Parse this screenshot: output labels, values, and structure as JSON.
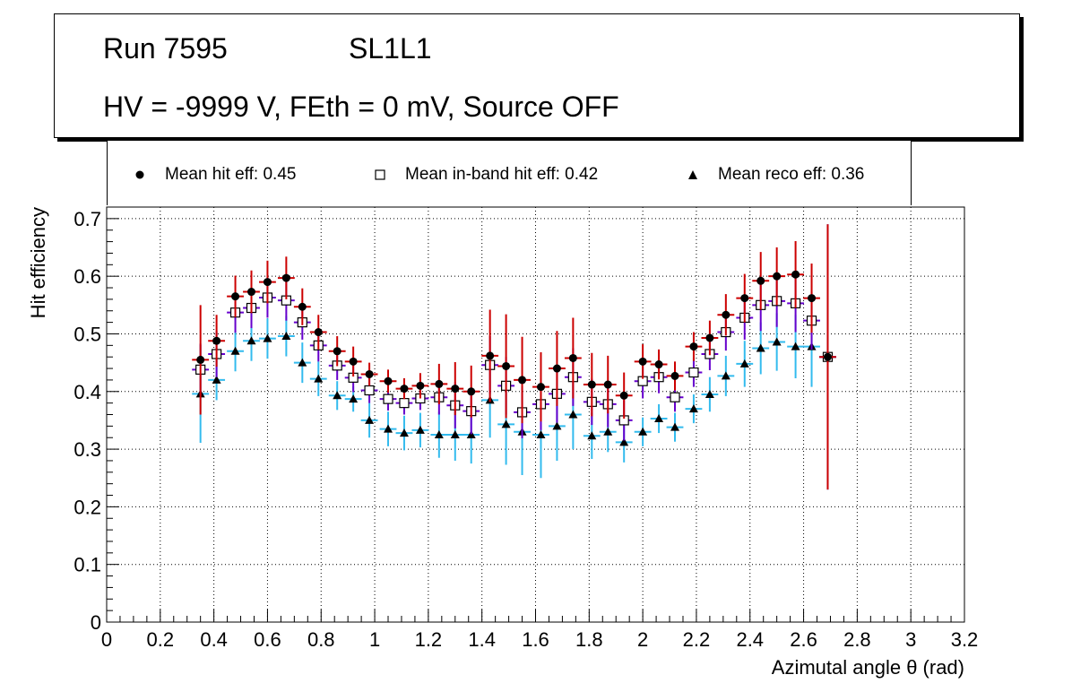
{
  "header": {
    "run": "Run 7595",
    "layer": "SL1L1",
    "conditions": "HV = -9999 V, FEth = 0 mV, Source OFF"
  },
  "legend": {
    "hit": "Mean hit  eff: 0.45",
    "inband": "Mean in-band hit eff: 0.42",
    "reco": "Mean reco eff: 0.36"
  },
  "colors": {
    "hit_err": "#cc0000",
    "inband_err": "#6600cc",
    "reco_err": "#33bbee",
    "grid": "#000000"
  },
  "chart_data": {
    "type": "scatter",
    "xlabel": "Azimutal angle θ (rad)",
    "ylabel": "Hit efficiency",
    "xlim": [
      0,
      3.2
    ],
    "ylim": [
      0,
      0.72
    ],
    "xticks": [
      "0",
      "0.2",
      "0.4",
      "0.6",
      "0.8",
      "1",
      "1.2",
      "1.4",
      "1.6",
      "1.8",
      "2",
      "2.2",
      "2.4",
      "2.6",
      "2.8",
      "3",
      "3.2"
    ],
    "yticks": [
      "0",
      "0.1",
      "0.2",
      "0.3",
      "0.4",
      "0.5",
      "0.6",
      "0.7"
    ],
    "x": [
      0.35,
      0.41,
      0.48,
      0.54,
      0.6,
      0.67,
      0.73,
      0.79,
      0.86,
      0.92,
      0.98,
      1.05,
      1.11,
      1.17,
      1.24,
      1.3,
      1.36,
      1.43,
      1.49,
      1.55,
      1.62,
      1.68,
      1.74,
      1.81,
      1.87,
      1.93,
      2.0,
      2.06,
      2.12,
      2.19,
      2.25,
      2.31,
      2.38,
      2.44,
      2.5,
      2.57,
      2.63,
      2.69
    ],
    "series": [
      {
        "name": "Mean hit eff",
        "values": [
          0.455,
          0.488,
          0.565,
          0.573,
          0.59,
          0.597,
          0.547,
          0.503,
          0.47,
          0.452,
          0.43,
          0.418,
          0.405,
          0.41,
          0.413,
          0.405,
          0.4,
          0.462,
          0.444,
          0.42,
          0.408,
          0.44,
          0.458,
          0.412,
          0.412,
          0.393,
          0.452,
          0.447,
          0.427,
          0.478,
          0.493,
          0.533,
          0.562,
          0.592,
          0.6,
          0.603,
          0.562,
          0.46
        ],
        "errors": [
          0.095,
          0.045,
          0.036,
          0.037,
          0.037,
          0.037,
          0.032,
          0.03,
          0.026,
          0.026,
          0.02,
          0.02,
          0.018,
          0.022,
          0.035,
          0.046,
          0.045,
          0.08,
          0.09,
          0.075,
          0.06,
          0.065,
          0.07,
          0.055,
          0.05,
          0.04,
          0.03,
          0.026,
          0.025,
          0.025,
          0.03,
          0.036,
          0.042,
          0.05,
          0.05,
          0.058,
          0.06,
          0.23
        ]
      },
      {
        "name": "Mean in-band hit eff",
        "values": [
          0.438,
          0.465,
          0.537,
          0.545,
          0.563,
          0.558,
          0.52,
          0.48,
          0.445,
          0.424,
          0.402,
          0.387,
          0.38,
          0.388,
          0.39,
          0.376,
          0.366,
          0.446,
          0.41,
          0.364,
          0.378,
          0.396,
          0.425,
          0.382,
          0.378,
          0.35,
          0.418,
          0.425,
          0.39,
          0.433,
          0.465,
          0.503,
          0.528,
          0.55,
          0.557,
          0.553,
          0.523,
          0.46
        ],
        "errors": [
          0.045,
          0.04,
          0.035,
          0.035,
          0.035,
          0.035,
          0.03,
          0.028,
          0.025,
          0.025,
          0.022,
          0.02,
          0.02,
          0.02,
          0.03,
          0.04,
          0.04,
          0.05,
          0.05,
          0.045,
          0.045,
          0.05,
          0.05,
          0.04,
          0.04,
          0.035,
          0.03,
          0.028,
          0.025,
          0.025,
          0.028,
          0.032,
          0.038,
          0.045,
          0.045,
          0.05,
          0.05,
          0.23
        ]
      },
      {
        "name": "Mean reco eff",
        "values": [
          0.396,
          0.42,
          0.47,
          0.488,
          0.492,
          0.496,
          0.45,
          0.422,
          0.393,
          0.387,
          0.35,
          0.335,
          0.328,
          0.333,
          0.325,
          0.325,
          0.325,
          0.385,
          0.343,
          0.33,
          0.325,
          0.34,
          0.36,
          0.323,
          0.33,
          0.312,
          0.33,
          0.353,
          0.338,
          0.37,
          0.395,
          0.427,
          0.448,
          0.475,
          0.486,
          0.478,
          0.478,
          0.46
        ],
        "errors": [
          0.085,
          0.035,
          0.035,
          0.035,
          0.035,
          0.035,
          0.035,
          0.03,
          0.025,
          0.022,
          0.03,
          0.03,
          0.03,
          0.03,
          0.04,
          0.045,
          0.05,
          0.065,
          0.07,
          0.075,
          0.075,
          0.06,
          0.06,
          0.04,
          0.035,
          0.035,
          0.025,
          0.025,
          0.025,
          0.025,
          0.03,
          0.035,
          0.04,
          0.045,
          0.05,
          0.055,
          0.07,
          0.23
        ]
      }
    ]
  }
}
